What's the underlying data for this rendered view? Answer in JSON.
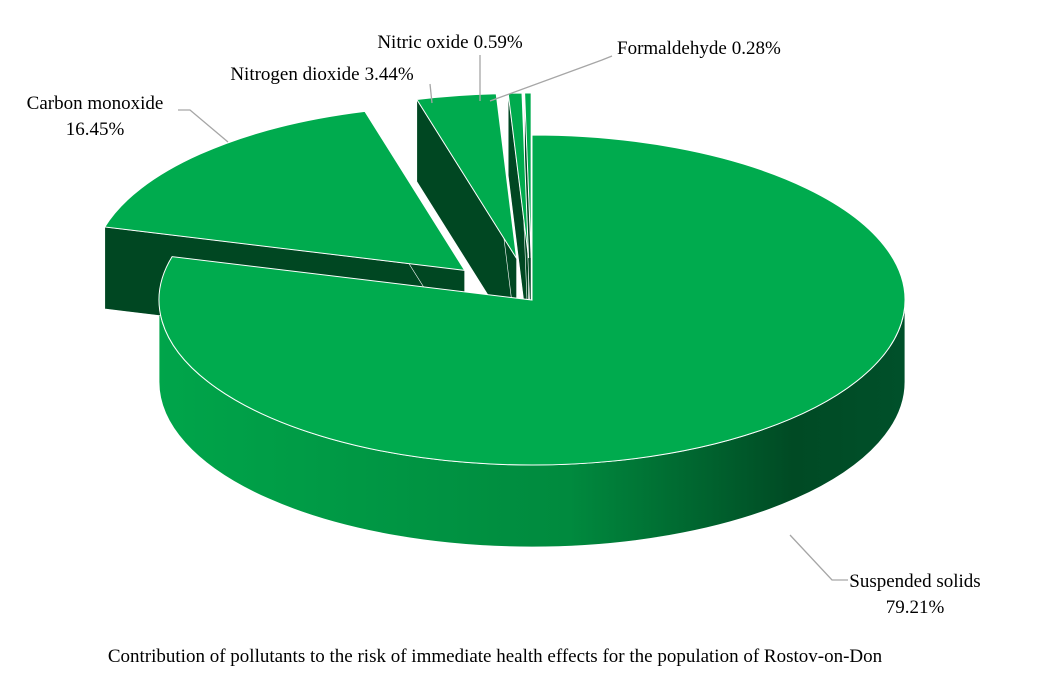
{
  "chart_data": {
    "type": "pie3d",
    "title": "Contribution of pollutants to the risk of immediate health effects for the population of Rostov-on-Don",
    "categories": [
      "Suspended solids",
      "Carbon monoxide",
      "Nitrogen dioxide",
      "Nitric oxide",
      "Formaldehyde"
    ],
    "values": [
      79.21,
      16.45,
      3.44,
      0.59,
      0.28
    ],
    "value_labels": [
      "79.21%",
      "16.45%",
      "3.44%",
      "0.59%",
      "0.28%"
    ],
    "color": "#00ab4e"
  }
}
